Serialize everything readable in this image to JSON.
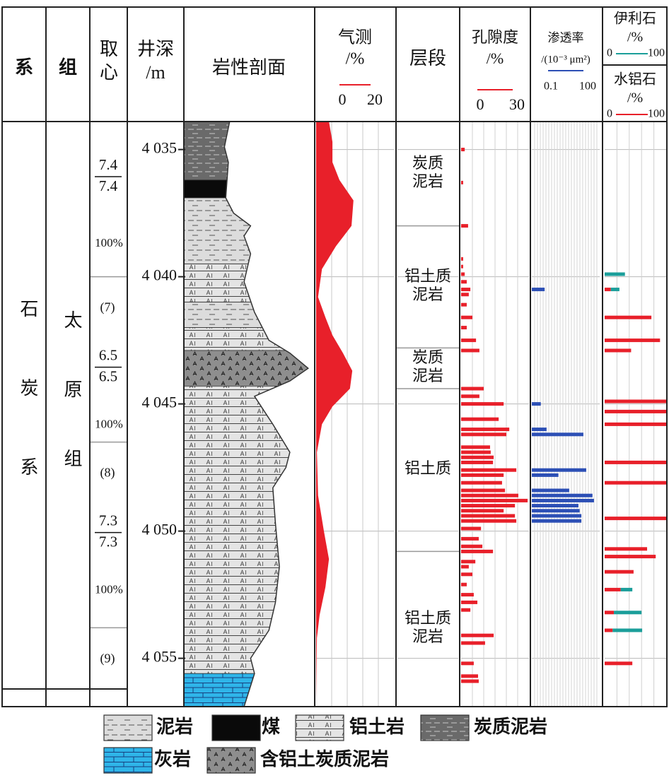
{
  "header": {
    "system": "系",
    "formation": "组",
    "core": [
      "取",
      "心"
    ],
    "depth": [
      "井深",
      "/m"
    ],
    "lithology": "岩性剖面",
    "layer": "层段"
  },
  "strata": {
    "system": "石炭系",
    "formation": "太原组"
  },
  "depth_axis": {
    "lim": [
      4033.9,
      4056.9
    ],
    "ticks": [
      {
        "value": 4035,
        "label": "4 035"
      },
      {
        "value": 4040,
        "label": "4 040"
      },
      {
        "value": 4045,
        "label": "4 045"
      },
      {
        "value": 4050,
        "label": "4 050"
      },
      {
        "value": 4055,
        "label": "4 055"
      }
    ]
  },
  "cores": [
    {
      "top": 4033.9,
      "bottom": 4040.0,
      "ratio": [
        "7.4",
        "7.4"
      ],
      "percent": "100%"
    },
    {
      "number": "(7)",
      "top": 4040.0,
      "bottom": 4046.5,
      "ratio": [
        "6.5",
        "6.5"
      ],
      "percent": "100%"
    },
    {
      "number": "(8)",
      "top": 4046.5,
      "bottom": 4053.8,
      "ratio": [
        "7.3",
        "7.3"
      ],
      "percent": "100%"
    },
    {
      "number": "(9)",
      "top": 4053.8,
      "bottom": 4056.9
    }
  ],
  "layers": [
    {
      "top": 4033.9,
      "bottom": 4038.0,
      "label": [
        "炭质",
        "泥岩"
      ]
    },
    {
      "top": 4038.0,
      "bottom": 4042.8,
      "label": [
        "铝土质",
        "泥岩"
      ]
    },
    {
      "top": 4042.8,
      "bottom": 4044.4,
      "label": [
        "炭质",
        "泥岩"
      ]
    },
    {
      "top": 4044.4,
      "bottom": 4050.8,
      "label": [
        "铝土质"
      ]
    },
    {
      "top": 4050.8,
      "bottom": 4056.9,
      "label": [
        "铝土质",
        "泥岩"
      ]
    }
  ],
  "lithology": {
    "beds": [
      {
        "type": "carbonaceous",
        "top": 4033.9,
        "bottom": 4036.2
      },
      {
        "type": "coal",
        "top": 4036.2,
        "bottom": 4036.9
      },
      {
        "type": "mudstone",
        "top": 4036.9,
        "bottom": 4039.5
      },
      {
        "type": "bauxite",
        "top": 4039.5,
        "bottom": 4041.0
      },
      {
        "type": "mudstone",
        "top": 4041.0,
        "bottom": 4042.0
      },
      {
        "type": "bauxite",
        "top": 4042.0,
        "bottom": 4042.9
      },
      {
        "type": "al-carbonaceous",
        "top": 4042.9,
        "bottom": 4044.3
      },
      {
        "type": "bauxite",
        "top": 4044.3,
        "bottom": 4055.6
      },
      {
        "type": "limestone",
        "top": 4055.6,
        "bottom": 4056.9
      }
    ],
    "relief": {
      "depth": [
        4033.9,
        4034.9,
        4035.5,
        4036.9,
        4037.5,
        4038.0,
        4038.4,
        4039.1,
        4040.2,
        4041.4,
        4042.5,
        4043.0,
        4043.6,
        4044.1,
        4044.7,
        4045.8,
        4046.9,
        4047.5,
        4048.3,
        4049.7,
        4051.4,
        4052.8,
        4053.9,
        4055.0,
        4055.6,
        4056.9
      ],
      "width": [
        35,
        31,
        34,
        32,
        38,
        51,
        46,
        51,
        46,
        54,
        65,
        81,
        95,
        81,
        54,
        68,
        81,
        78,
        68,
        70,
        73,
        70,
        65,
        51,
        54,
        46
      ]
    }
  },
  "gas": {
    "title": "气测",
    "unit": "/%",
    "color": "#e8202a",
    "xlim": [
      0,
      20
    ],
    "depth": [
      4033.9,
      4034.7,
      4035.5,
      4036.2,
      4036.6,
      4037.0,
      4038.0,
      4038.8,
      4039.7,
      4040.8,
      4041.6,
      4042.3,
      4043.0,
      4043.7,
      4044.4,
      4045.1,
      4045.8,
      4046.9,
      4048.6,
      4050.0,
      4051.1,
      4052.2,
      4053.3,
      4054.2,
      4056.9
    ],
    "values": [
      3.3,
      4.2,
      4.2,
      6.0,
      7.8,
      9.6,
      9.1,
      5.1,
      1.5,
      0.5,
      2.4,
      4.2,
      6.9,
      9.3,
      8.7,
      4.2,
      1.5,
      0.2,
      0.5,
      2.0,
      3.3,
      2.4,
      0.9,
      0.2,
      0
    ]
  },
  "porosity": {
    "title": "孔隙度",
    "unit": "/%",
    "color": "#e8202a",
    "xlim": [
      0,
      30
    ],
    "depth": [
      4035.0,
      4036.3,
      4038.0,
      4039.3,
      4039.6,
      4039.9,
      4040.2,
      4040.5,
      4040.7,
      4041.1,
      4041.6,
      4042.0,
      4042.5,
      4042.9,
      4044.4,
      4044.7,
      4045.0,
      4045.6,
      4046.0,
      4046.2,
      4046.7,
      4046.9,
      4047.1,
      4047.3,
      4047.6,
      4047.8,
      4048.1,
      4048.4,
      4048.6,
      4048.8,
      4049.0,
      4049.2,
      4049.4,
      4049.6,
      4049.9,
      4050.3,
      4050.6,
      4050.8,
      4051.2,
      4051.4,
      4051.7,
      4052.1,
      4052.5,
      4052.8,
      4053.1,
      4054.1,
      4054.4,
      4055.2,
      4055.7,
      4055.9
    ],
    "values": [
      1.6,
      0.9,
      3.1,
      0.9,
      0.9,
      1.6,
      2.5,
      4.1,
      3.4,
      2.5,
      5.0,
      2.5,
      6.6,
      8.1,
      10.0,
      8.1,
      18.8,
      16.6,
      21.3,
      20.0,
      12.8,
      13.1,
      14.4,
      14.1,
      24.4,
      18.8,
      18.1,
      19.4,
      25.3,
      29.4,
      23.8,
      18.8,
      23.8,
      24.4,
      8.8,
      7.8,
      9.4,
      14.1,
      6.3,
      3.4,
      5.0,
      2.5,
      5.6,
      7.2,
      4.1,
      14.4,
      10.6,
      5.6,
      7.5,
      7.8
    ]
  },
  "permeability": {
    "title": "渗透率",
    "unit": "/(10⁻³ μm²)",
    "color": "#2c4fb5",
    "xlim": [
      0.1,
      100
    ],
    "log": true,
    "depth": [
      4040.5,
      4045.0,
      4046.0,
      4046.2,
      4047.6,
      4047.8,
      4048.4,
      4048.6,
      4048.8,
      4049.0,
      4049.2,
      4049.4,
      4049.6
    ],
    "values": [
      0.37,
      0.25,
      0.45,
      19,
      25.4,
      1.5,
      4.5,
      48,
      56,
      11.5,
      13,
      15.5,
      15.5
    ]
  },
  "minerals": {
    "xlim": [
      0,
      100
    ],
    "depth": [
      4039.9,
      4040.5,
      4041.6,
      4042.5,
      4042.9,
      4044.9,
      4045.3,
      4045.8,
      4047.3,
      4048.1,
      4049.5,
      4050.7,
      4051.0,
      4051.6,
      4052.3,
      4053.2,
      4053.9,
      4055.2
    ],
    "series": [
      {
        "name": "水铝石",
        "unit": "/%",
        "color": "#e8202a",
        "values": [
          0,
          10,
          76,
          90,
          43,
          100,
          100,
          100,
          100,
          100,
          100,
          69,
          83,
          47,
          26,
          15,
          13,
          45
        ]
      },
      {
        "name": "伊利石",
        "unit": "/%",
        "color": "#1b9e9a",
        "values": [
          33,
          14,
          0,
          0,
          0,
          0,
          0,
          0,
          0,
          0,
          0,
          0,
          0,
          0,
          19,
          45,
          48,
          0
        ]
      }
    ]
  },
  "legend": [
    {
      "type": "mudstone",
      "label": "泥岩"
    },
    {
      "type": "coal",
      "label": "煤"
    },
    {
      "type": "bauxite",
      "label": "铝土岩"
    },
    {
      "type": "carbonaceous",
      "label": "炭质泥岩"
    },
    {
      "type": "limestone",
      "label": "灰岩"
    },
    {
      "type": "al-carbonaceous",
      "label": "含铝土炭质泥岩"
    }
  ]
}
